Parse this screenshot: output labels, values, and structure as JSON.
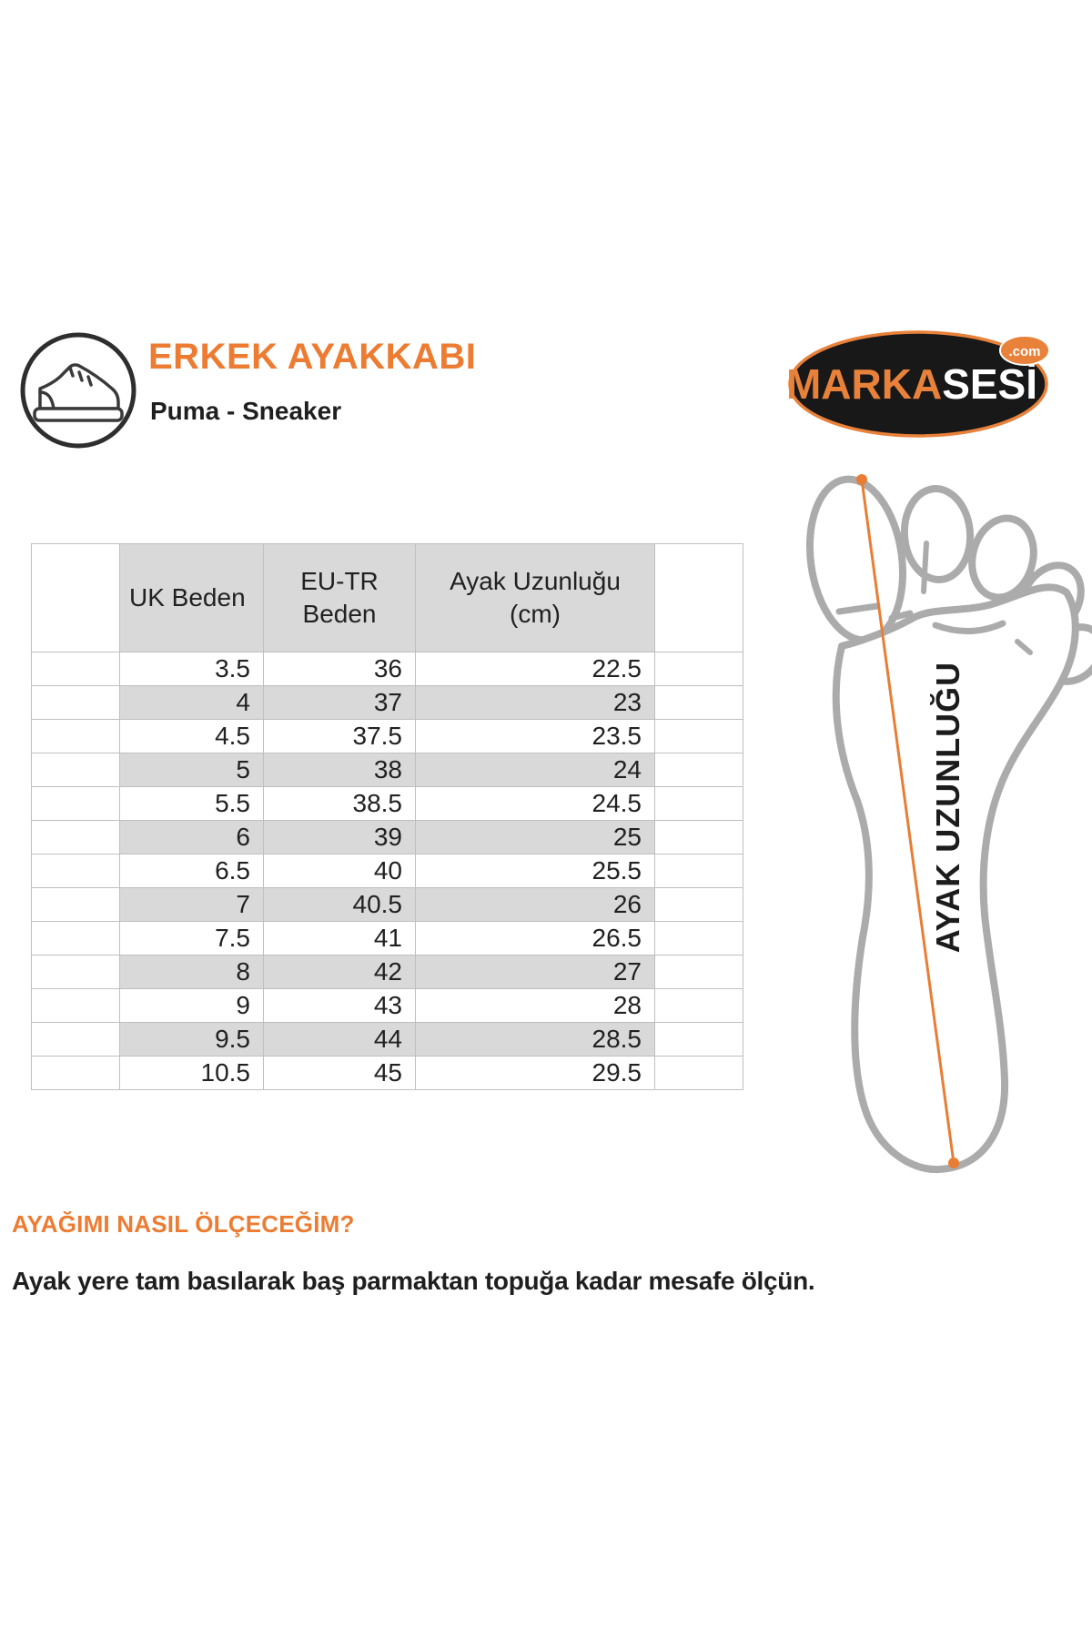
{
  "header": {
    "title": "ERKEK AYAKKABI",
    "subtitle": "Puma - Sneaker"
  },
  "logo": {
    "brand_part1": "MARKA",
    "brand_part2": "SESİ",
    "badge": ".com"
  },
  "icons": {
    "header_icon": "sneaker-icon"
  },
  "size_table": {
    "headers": [
      "UK Beden",
      "EU-TR\nBeden",
      "Ayak Uzunluğu\n(cm)"
    ],
    "rows": [
      [
        "3.5",
        "36",
        "22.5"
      ],
      [
        "4",
        "37",
        "23"
      ],
      [
        "4.5",
        "37.5",
        "23.5"
      ],
      [
        "5",
        "38",
        "24"
      ],
      [
        "5.5",
        "38.5",
        "24.5"
      ],
      [
        "6",
        "39",
        "25"
      ],
      [
        "6.5",
        "40",
        "25.5"
      ],
      [
        "7",
        "40.5",
        "26"
      ],
      [
        "7.5",
        "41",
        "26.5"
      ],
      [
        "8",
        "42",
        "27"
      ],
      [
        "9",
        "43",
        "28"
      ],
      [
        "9.5",
        "44",
        "28.5"
      ],
      [
        "10.5",
        "45",
        "29.5"
      ]
    ]
  },
  "foot_diagram": {
    "label": "AYAK UZUNLUĞU"
  },
  "measure": {
    "heading": "AYAĞIMI NASIL ÖLÇECEĞİM?",
    "instruction": "Ayak yere tam basılarak baş parmaktan topuğa kadar mesafe ölçün."
  },
  "colors": {
    "accent_orange": "#ED7C33",
    "table_stripe": "#D9D9D9",
    "table_border": "#BFBFBF",
    "foot_outline": "#ABABAB",
    "logo_background": "#181818",
    "text_dark": "#1F1F1F"
  }
}
